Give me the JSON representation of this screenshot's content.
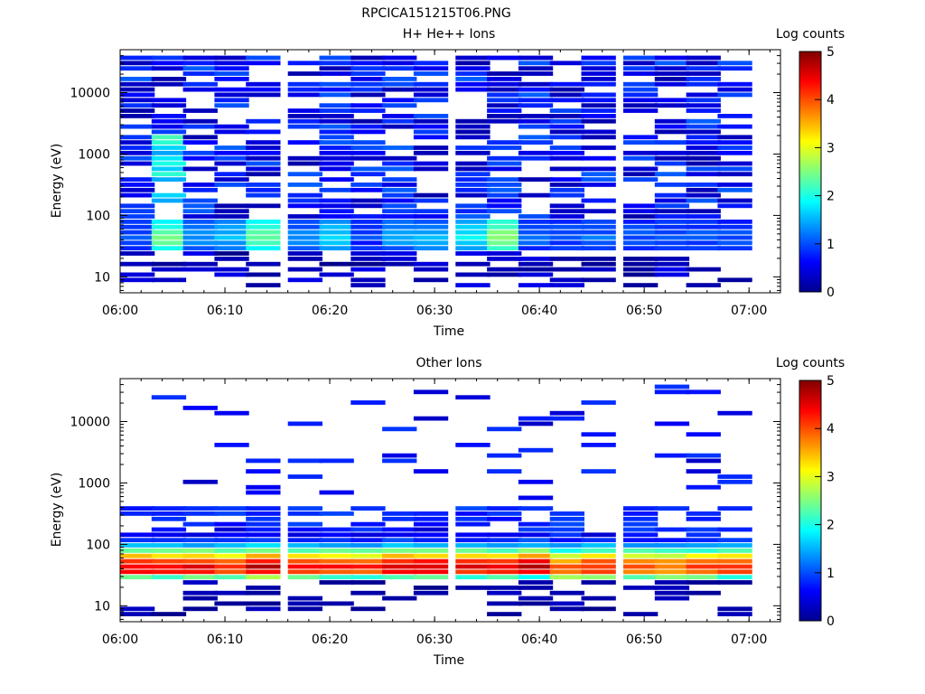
{
  "figure_title": "RPCICA151215T06.PNG",
  "chart_data": [
    {
      "type": "heatmap",
      "title": "H+ He++ Ions",
      "xlabel": "Time",
      "ylabel": "Energy (eV)",
      "x_ticks": [
        "06:00",
        "06:10",
        "06:20",
        "06:30",
        "06:40",
        "06:50",
        "07:00"
      ],
      "x_range": [
        "06:00",
        "07:03"
      ],
      "y_ticks": [
        "10",
        "100",
        "1000",
        "10000"
      ],
      "y_scale": "log",
      "y_range": [
        5.5,
        50000
      ],
      "colorbar_label": "Log counts",
      "colorbar_ticks": [
        "0",
        "1",
        "2",
        "3",
        "4",
        "5"
      ],
      "colorbar_range": [
        0,
        5
      ],
      "colormap": "jet",
      "time_bins": [
        "06:00",
        "06:03",
        "06:06",
        "06:09",
        "06:12",
        "06:16",
        "06:19",
        "06:22",
        "06:25",
        "06:28",
        "06:32",
        "06:35",
        "06:38",
        "06:41",
        "06:44",
        "06:48",
        "06:51",
        "06:54",
        "06:57"
      ],
      "value_at_50eV_log_counts": [
        0.9,
        2.4,
        1.3,
        1.4,
        2.4,
        1.2,
        1.6,
        0.8,
        1.3,
        1.4,
        1.8,
        2.5,
        1.0,
        0.9,
        1.0,
        0.9,
        0.9,
        0.9,
        0.9
      ]
    },
    {
      "type": "heatmap",
      "title": "Other Ions",
      "xlabel": "Time",
      "ylabel": "Energy (eV)",
      "x_ticks": [
        "06:00",
        "06:10",
        "06:20",
        "06:30",
        "06:40",
        "06:50",
        "07:00"
      ],
      "x_range": [
        "06:00",
        "07:03"
      ],
      "y_ticks": [
        "10",
        "100",
        "1000",
        "10000"
      ],
      "y_scale": "log",
      "y_range": [
        5.5,
        50000
      ],
      "colorbar_label": "Log counts",
      "colorbar_ticks": [
        "0",
        "1",
        "2",
        "3",
        "4",
        "5"
      ],
      "colorbar_range": [
        0,
        5
      ],
      "colormap": "jet",
      "time_bins": [
        "06:00",
        "06:03",
        "06:06",
        "06:09",
        "06:12",
        "06:16",
        "06:19",
        "06:22",
        "06:25",
        "06:28",
        "06:32",
        "06:35",
        "06:38",
        "06:41",
        "06:44",
        "06:48",
        "06:51",
        "06:54",
        "06:57"
      ],
      "peak_log_counts": [
        4.3,
        4.3,
        4.3,
        4.1,
        4.5,
        4.2,
        4.1,
        4.0,
        4.3,
        4.4,
        4.3,
        4.2,
        4.5,
        3.7,
        4.0,
        3.8,
        3.7,
        3.9,
        4.0
      ]
    }
  ]
}
